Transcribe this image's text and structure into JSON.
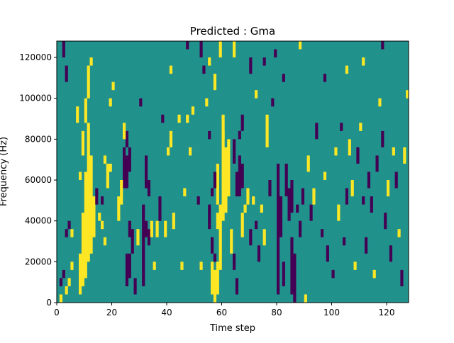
{
  "chart_data": {
    "type": "heatmap",
    "title": "Predicted : Gma",
    "xlabel": "Time step",
    "ylabel": "Frequency (Hz)",
    "xlim": [
      0,
      128
    ],
    "ylim": [
      0,
      128000
    ],
    "n_cols": 128,
    "n_rows": 32,
    "row_hz": 4000,
    "xticks": [
      0,
      20,
      40,
      60,
      80,
      100,
      120
    ],
    "yticks": [
      0,
      20000,
      40000,
      60000,
      80000,
      100000,
      120000
    ],
    "colors": {
      "background": "#21918c",
      "low": "#440154",
      "high": "#fde725"
    },
    "legend": "none",
    "cells_note_value_codes": {
      "1": "low",
      "2": "high"
    },
    "segments": [
      [
        1,
        0,
        0,
        2
      ],
      [
        2,
        3,
        3,
        1
      ],
      [
        1,
        2,
        2,
        1
      ],
      [
        3,
        1,
        1,
        2
      ],
      [
        4,
        2,
        2,
        2
      ],
      [
        5,
        4,
        4,
        2
      ],
      [
        5,
        8,
        8,
        2
      ],
      [
        4,
        9,
        9,
        1
      ],
      [
        3,
        8,
        8,
        1
      ],
      [
        8,
        1,
        5,
        2
      ],
      [
        9,
        2,
        10,
        2
      ],
      [
        10,
        3,
        15,
        2
      ],
      [
        11,
        5,
        21,
        2
      ],
      [
        12,
        6,
        17,
        2
      ],
      [
        13,
        8,
        12,
        2
      ],
      [
        9,
        18,
        20,
        2
      ],
      [
        10,
        22,
        24,
        2
      ],
      [
        11,
        25,
        28,
        2
      ],
      [
        12,
        29,
        29,
        2
      ],
      [
        8,
        15,
        15,
        2
      ],
      [
        7,
        22,
        23,
        2
      ],
      [
        2,
        30,
        31,
        1
      ],
      [
        3,
        27,
        28,
        1
      ],
      [
        15,
        10,
        10,
        2
      ],
      [
        16,
        9,
        9,
        2
      ],
      [
        14,
        12,
        13,
        1
      ],
      [
        16,
        12,
        12,
        1
      ],
      [
        17,
        7,
        7,
        2
      ],
      [
        18,
        14,
        16,
        2
      ],
      [
        19,
        16,
        16,
        2
      ],
      [
        17,
        17,
        17,
        2
      ],
      [
        24,
        14,
        18,
        1
      ],
      [
        25,
        14,
        17,
        1
      ],
      [
        26,
        16,
        18,
        1
      ],
      [
        25,
        19,
        20,
        1
      ],
      [
        23,
        12,
        14,
        2
      ],
      [
        22,
        10,
        12,
        2
      ],
      [
        24,
        20,
        21,
        2
      ],
      [
        26,
        8,
        9,
        1
      ],
      [
        25,
        2,
        5,
        1
      ],
      [
        26,
        3,
        5,
        1
      ],
      [
        27,
        6,
        8,
        1
      ],
      [
        28,
        1,
        2,
        1
      ],
      [
        29,
        7,
        8,
        2
      ],
      [
        31,
        2,
        11,
        1
      ],
      [
        32,
        8,
        9,
        1
      ],
      [
        33,
        7,
        8,
        1
      ],
      [
        32,
        14,
        17,
        1
      ],
      [
        33,
        13,
        14,
        1
      ],
      [
        34,
        8,
        9,
        2
      ],
      [
        35,
        4,
        4,
        2
      ],
      [
        36,
        8,
        9,
        2
      ],
      [
        37,
        10,
        12,
        1
      ],
      [
        38,
        22,
        22,
        1
      ],
      [
        39,
        8,
        9,
        2
      ],
      [
        40,
        18,
        18,
        2
      ],
      [
        41,
        19,
        20,
        2
      ],
      [
        42,
        9,
        10,
        2
      ],
      [
        45,
        4,
        4,
        2
      ],
      [
        46,
        13,
        13,
        2
      ],
      [
        47,
        22,
        22,
        2
      ],
      [
        48,
        18,
        18,
        2
      ],
      [
        49,
        23,
        23,
        2
      ],
      [
        51,
        12,
        12,
        1
      ],
      [
        52,
        4,
        4,
        2
      ],
      [
        55,
        9,
        11,
        1
      ],
      [
        56,
        6,
        7,
        1
      ],
      [
        57,
        5,
        5,
        1
      ],
      [
        56,
        1,
        4,
        2
      ],
      [
        57,
        0,
        3,
        2
      ],
      [
        58,
        1,
        4,
        2
      ],
      [
        59,
        4,
        11,
        2
      ],
      [
        60,
        10,
        20,
        2
      ],
      [
        61,
        11,
        18,
        2
      ],
      [
        62,
        13,
        19,
        2
      ],
      [
        60,
        20,
        22,
        2
      ],
      [
        58,
        12,
        16,
        2
      ],
      [
        57,
        14,
        15,
        1
      ],
      [
        58,
        9,
        10,
        2
      ],
      [
        56,
        13,
        13,
        1
      ],
      [
        55,
        20,
        20,
        1
      ],
      [
        54,
        24,
        24,
        2
      ],
      [
        53,
        28,
        28,
        1
      ],
      [
        52,
        30,
        31,
        1
      ],
      [
        63,
        6,
        8,
        2
      ],
      [
        64,
        4,
        5,
        1
      ],
      [
        64,
        17,
        19,
        1
      ],
      [
        65,
        13,
        15,
        1
      ],
      [
        66,
        13,
        17,
        1
      ],
      [
        67,
        14,
        16,
        1
      ],
      [
        66,
        20,
        20,
        1
      ],
      [
        67,
        21,
        22,
        1
      ],
      [
        65,
        1,
        2,
        1
      ],
      [
        67,
        8,
        10,
        2
      ],
      [
        68,
        11,
        11,
        2
      ],
      [
        69,
        12,
        13,
        2
      ],
      [
        70,
        7,
        8,
        1
      ],
      [
        71,
        12,
        12,
        2
      ],
      [
        72,
        9,
        9,
        1
      ],
      [
        73,
        5,
        6,
        1
      ],
      [
        74,
        11,
        11,
        2
      ],
      [
        75,
        7,
        8,
        2
      ],
      [
        76,
        19,
        22,
        2
      ],
      [
        77,
        13,
        14,
        1
      ],
      [
        78,
        24,
        24,
        1
      ],
      [
        79,
        30,
        30,
        1
      ],
      [
        80,
        1,
        16,
        1
      ],
      [
        81,
        8,
        12,
        1
      ],
      [
        82,
        2,
        4,
        1
      ],
      [
        83,
        13,
        16,
        1
      ],
      [
        84,
        10,
        13,
        1
      ],
      [
        85,
        1,
        7,
        1
      ],
      [
        86,
        0,
        5,
        1
      ],
      [
        85,
        11,
        14,
        1
      ],
      [
        87,
        11,
        11,
        1
      ],
      [
        88,
        8,
        9,
        1
      ],
      [
        89,
        12,
        13,
        1
      ],
      [
        90,
        0,
        0,
        2
      ],
      [
        91,
        16,
        17,
        2
      ],
      [
        92,
        10,
        11,
        1
      ],
      [
        93,
        12,
        13,
        2
      ],
      [
        94,
        20,
        21,
        1
      ],
      [
        96,
        8,
        8,
        1
      ],
      [
        97,
        15,
        15,
        2
      ],
      [
        98,
        5,
        6,
        1
      ],
      [
        100,
        3,
        3,
        1
      ],
      [
        101,
        18,
        18,
        2
      ],
      [
        102,
        10,
        11,
        2
      ],
      [
        103,
        21,
        21,
        1
      ],
      [
        104,
        7,
        7,
        1
      ],
      [
        105,
        12,
        13,
        1
      ],
      [
        106,
        18,
        19,
        2
      ],
      [
        107,
        13,
        14,
        2
      ],
      [
        108,
        4,
        4,
        2
      ],
      [
        109,
        17,
        18,
        1
      ],
      [
        110,
        21,
        21,
        2
      ],
      [
        111,
        12,
        12,
        1
      ],
      [
        112,
        6,
        7,
        1
      ],
      [
        113,
        14,
        15,
        1
      ],
      [
        114,
        11,
        12,
        1
      ],
      [
        115,
        3,
        3,
        2
      ],
      [
        116,
        16,
        17,
        1
      ],
      [
        117,
        24,
        24,
        2
      ],
      [
        118,
        19,
        20,
        1
      ],
      [
        119,
        9,
        10,
        1
      ],
      [
        120,
        13,
        14,
        2
      ],
      [
        121,
        5,
        6,
        1
      ],
      [
        122,
        18,
        18,
        2
      ],
      [
        123,
        14,
        15,
        1
      ],
      [
        124,
        8,
        8,
        2
      ],
      [
        125,
        2,
        3,
        1
      ],
      [
        126,
        17,
        18,
        2
      ],
      [
        127,
        25,
        25,
        2
      ],
      [
        30,
        24,
        24,
        1
      ],
      [
        44,
        22,
        22,
        2
      ],
      [
        20,
        26,
        26,
        2
      ],
      [
        19,
        24,
        24,
        2
      ],
      [
        47,
        31,
        31,
        1
      ],
      [
        57,
        26,
        27,
        2
      ],
      [
        59,
        30,
        31,
        2
      ],
      [
        64,
        30,
        31,
        2
      ],
      [
        70,
        28,
        29,
        1
      ],
      [
        75,
        29,
        29,
        1
      ],
      [
        72,
        25,
        25,
        2
      ],
      [
        88,
        31,
        31,
        2
      ],
      [
        97,
        27,
        27,
        1
      ],
      [
        105,
        28,
        28,
        2
      ],
      [
        111,
        29,
        29,
        2
      ],
      [
        118,
        31,
        31,
        1
      ],
      [
        82,
        27,
        27,
        1
      ],
      [
        55,
        29,
        29,
        2
      ],
      [
        41,
        28,
        28,
        2
      ]
    ]
  }
}
